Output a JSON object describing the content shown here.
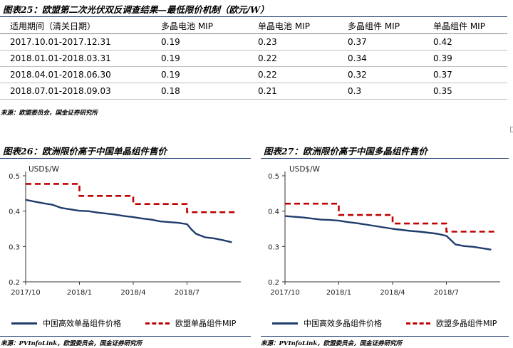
{
  "table_title": "图表25：欧盟第二次光伏双反调查结果—最低限价机制（欧元/W）",
  "table_headers": [
    "适用期间（清关日期）",
    "多晶电池 MIP",
    "单晶电池 MIP",
    "多晶组件 MIP",
    "单晶组件 MIP"
  ],
  "table_rows": [
    [
      "2017.10.01-2017.12.31",
      "0.19",
      "0.23",
      "0.37",
      "0.42"
    ],
    [
      "2018.01.01-2018.03.31",
      "0.19",
      "0.22",
      "0.34",
      "0.39"
    ],
    [
      "2018.04.01-2018.06.30",
      "0.19",
      "0.22",
      "0.32",
      "0.37"
    ],
    [
      "2018.07.01-2018.09.03",
      "0.18",
      "0.21",
      "0.3",
      "0.35"
    ]
  ],
  "table_source": "来源：欧盟委员会，国金证券研究所",
  "left_title": "图表26：欧洲限价高于中国单晶组件售价",
  "right_title": "图表27：欧洲限价高于中国多晶组件售价",
  "left_source": "来源：PVInfoLink，欧盟委员会，国金证券研究所",
  "right_source": "来源：PVInfoLink，欧盟委员会，国金证券研究所",
  "chart_data": [
    {
      "type": "line",
      "unit_label": "USD$/W",
      "ylim": [
        0.2,
        0.5
      ],
      "yticks": [
        "0.2",
        "0.3",
        "0.4",
        "0.5"
      ],
      "xlim": [
        0,
        12
      ],
      "xticks": [
        {
          "x": 0,
          "label": "2017/10"
        },
        {
          "x": 3,
          "label": "2018/1"
        },
        {
          "x": 6,
          "label": "2018/4"
        },
        {
          "x": 9,
          "label": "2018/7"
        }
      ],
      "series": [
        {
          "name": "中国高效单晶组件价格",
          "style": "solid",
          "color": "#1f3c6b",
          "x": [
            0,
            0.5,
            1,
            1.5,
            2,
            2.5,
            3,
            3.5,
            4,
            4.5,
            5,
            5.5,
            6,
            6.5,
            7,
            7.5,
            8,
            8.5,
            9,
            9.25,
            9.5,
            10,
            10.5,
            11,
            11.5
          ],
          "y": [
            0.432,
            0.427,
            0.422,
            0.418,
            0.409,
            0.405,
            0.401,
            0.4,
            0.396,
            0.393,
            0.39,
            0.386,
            0.383,
            0.379,
            0.376,
            0.371,
            0.369,
            0.367,
            0.363,
            0.348,
            0.336,
            0.326,
            0.323,
            0.318,
            0.312
          ]
        },
        {
          "name": "欧盟单晶组件MIP",
          "style": "dashed",
          "color": "#c00000",
          "x": [
            0,
            3,
            3,
            6,
            6,
            9,
            9,
            11.8
          ],
          "y": [
            0.477,
            0.477,
            0.443,
            0.443,
            0.42,
            0.42,
            0.397,
            0.397
          ]
        }
      ]
    },
    {
      "type": "line",
      "unit_label": "USD$/W",
      "ylim": [
        0.2,
        0.5
      ],
      "yticks": [
        "0.2",
        "0.3",
        "0.4",
        "0.5"
      ],
      "xlim": [
        0,
        12
      ],
      "xticks": [
        {
          "x": 0,
          "label": "2017/10"
        },
        {
          "x": 3,
          "label": "2018/1"
        },
        {
          "x": 6,
          "label": "2018/4"
        },
        {
          "x": 9,
          "label": "2018/7"
        }
      ],
      "series": [
        {
          "name": "中国高效多晶组件价格",
          "style": "solid",
          "color": "#1f3c6b",
          "x": [
            0,
            0.5,
            1,
            1.5,
            2,
            2.5,
            3,
            3.5,
            4,
            4.5,
            5,
            5.5,
            6,
            6.5,
            7,
            7.5,
            8,
            8.5,
            9,
            9.25,
            9.5,
            10,
            10.5,
            11,
            11.5
          ],
          "y": [
            0.386,
            0.384,
            0.382,
            0.379,
            0.376,
            0.375,
            0.373,
            0.369,
            0.366,
            0.362,
            0.358,
            0.354,
            0.35,
            0.347,
            0.344,
            0.342,
            0.339,
            0.336,
            0.33,
            0.318,
            0.306,
            0.301,
            0.299,
            0.295,
            0.291
          ]
        },
        {
          "name": "欧盟多晶组件MIP",
          "style": "dashed",
          "color": "#c00000",
          "x": [
            0,
            3,
            3,
            6,
            6,
            9,
            9,
            11.8
          ],
          "y": [
            0.421,
            0.421,
            0.389,
            0.389,
            0.365,
            0.365,
            0.342,
            0.342
          ]
        }
      ]
    }
  ]
}
